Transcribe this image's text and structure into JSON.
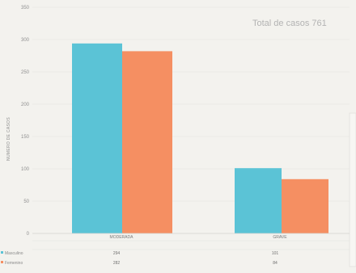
{
  "colors": {
    "masculino": "#5bc3d6",
    "femenino": "#f58f62",
    "background": "#f3f2ee",
    "grid": "#e3e2de"
  },
  "chart_data": {
    "type": "bar",
    "title": "Total de casos 761",
    "ylabel": "NUMERO DE CASOS",
    "ylim": [
      0,
      350
    ],
    "yticks": [
      0,
      50,
      100,
      150,
      200,
      250,
      300,
      350
    ],
    "categories": [
      "MODERADA",
      "GRAVE"
    ],
    "series": [
      {
        "name": "Masculino",
        "values": [
          294,
          101
        ],
        "labels": [
          "294",
          "101"
        ]
      },
      {
        "name": "Femenino",
        "values": [
          282,
          84
        ],
        "labels": [
          "282",
          "84"
        ]
      }
    ],
    "legend": "bottom-left table",
    "grid": false
  }
}
